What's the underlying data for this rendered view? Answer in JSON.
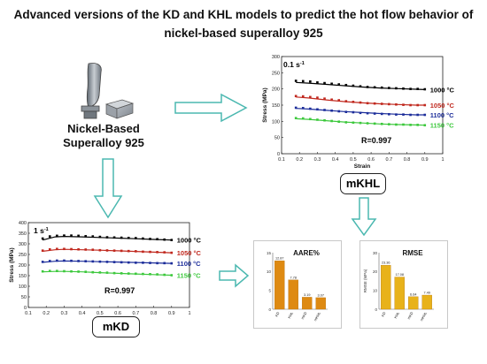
{
  "title": "Advanced versions of the KD and KHL models to predict the hot flow behavior of nickel-based superalloy 925",
  "material": {
    "line1": "Nickel-Based",
    "line2": "Superalloy 925"
  },
  "models": {
    "mkhl": "mKHL",
    "mkd": "mKD"
  },
  "colors": {
    "arrow": "#4bb8b0",
    "c1000": "#000000",
    "c1050": "#c0281e",
    "c1100": "#1c2d9a",
    "c1150": "#3cc83c",
    "aare_bar": "#de8a12",
    "rmse_bar": "#e8b21a"
  },
  "chart_data": [
    {
      "type": "line",
      "id": "mkhl",
      "rate_label": "0.1 s",
      "rate_exp": "-1",
      "xlabel": "Strain",
      "ylabel": "Stress (MPa)",
      "xlim": [
        0.1,
        1.0
      ],
      "ylim": [
        0,
        300
      ],
      "xticks": [
        "0.1",
        "0.2",
        "0.3",
        "0.4",
        "0.5",
        "0.6",
        "0.7",
        "0.8",
        "0.9",
        "1"
      ],
      "yticks": [
        "0",
        "50",
        "100",
        "150",
        "200",
        "250",
        "300"
      ],
      "r_label": "R=0.997",
      "grid": false,
      "series": [
        {
          "name": "1000 °C",
          "color_key": "c1000",
          "fit": [
            [
              0.18,
              220
            ],
            [
              0.25,
              218
            ],
            [
              0.35,
              214
            ],
            [
              0.45,
              210
            ],
            [
              0.55,
              206
            ],
            [
              0.65,
              203
            ],
            [
              0.75,
              201
            ],
            [
              0.85,
              199
            ],
            [
              0.9,
              198
            ]
          ],
          "points": [
            [
              0.18,
              225
            ],
            [
              0.22,
              224
            ],
            [
              0.26,
              223
            ],
            [
              0.3,
              220
            ],
            [
              0.34,
              218
            ],
            [
              0.38,
              216
            ],
            [
              0.42,
              214
            ],
            [
              0.46,
              212
            ],
            [
              0.5,
              210
            ],
            [
              0.54,
              208
            ],
            [
              0.58,
              206
            ],
            [
              0.62,
              205
            ],
            [
              0.66,
              204
            ],
            [
              0.7,
              203
            ],
            [
              0.74,
              202
            ],
            [
              0.78,
              201
            ],
            [
              0.82,
              200
            ],
            [
              0.86,
              200
            ],
            [
              0.9,
              199
            ]
          ]
        },
        {
          "name": "1050 °C",
          "color_key": "c1050",
          "fit": [
            [
              0.18,
              175
            ],
            [
              0.25,
              172
            ],
            [
              0.35,
              166
            ],
            [
              0.45,
              161
            ],
            [
              0.55,
              157
            ],
            [
              0.65,
              154
            ],
            [
              0.75,
              152
            ],
            [
              0.85,
              150
            ],
            [
              0.9,
              150
            ]
          ],
          "points": [
            [
              0.18,
              178
            ],
            [
              0.22,
              177
            ],
            [
              0.26,
              175
            ],
            [
              0.3,
              173
            ],
            [
              0.34,
              170
            ],
            [
              0.38,
              167
            ],
            [
              0.42,
              165
            ],
            [
              0.46,
              162
            ],
            [
              0.5,
              160
            ],
            [
              0.54,
              158
            ],
            [
              0.58,
              156
            ],
            [
              0.62,
              155
            ],
            [
              0.66,
              154
            ],
            [
              0.7,
              153
            ],
            [
              0.74,
              152
            ],
            [
              0.78,
              151
            ],
            [
              0.82,
              150
            ],
            [
              0.86,
              150
            ],
            [
              0.9,
              150
            ]
          ]
        },
        {
          "name": "1100 °C",
          "color_key": "c1100",
          "fit": [
            [
              0.18,
              140
            ],
            [
              0.25,
              138
            ],
            [
              0.35,
              134
            ],
            [
              0.45,
              130
            ],
            [
              0.55,
              127
            ],
            [
              0.65,
              124
            ],
            [
              0.75,
              122
            ],
            [
              0.85,
              120
            ],
            [
              0.9,
              120
            ]
          ],
          "points": [
            [
              0.18,
              142
            ],
            [
              0.22,
              141
            ],
            [
              0.26,
              139
            ],
            [
              0.3,
              137
            ],
            [
              0.34,
              135
            ],
            [
              0.38,
              133
            ],
            [
              0.42,
              131
            ],
            [
              0.46,
              129
            ],
            [
              0.5,
              128
            ],
            [
              0.54,
              126
            ],
            [
              0.58,
              125
            ],
            [
              0.62,
              124
            ],
            [
              0.66,
              123
            ],
            [
              0.7,
              122
            ],
            [
              0.74,
              121
            ],
            [
              0.78,
              121
            ],
            [
              0.82,
              120
            ],
            [
              0.86,
              120
            ],
            [
              0.9,
              120
            ]
          ]
        },
        {
          "name": "1150 °C",
          "color_key": "c1150",
          "fit": [
            [
              0.18,
              108
            ],
            [
              0.25,
              106
            ],
            [
              0.35,
              102
            ],
            [
              0.45,
              98
            ],
            [
              0.55,
              95
            ],
            [
              0.65,
              92
            ],
            [
              0.75,
              90
            ],
            [
              0.85,
              89
            ],
            [
              0.9,
              88
            ]
          ],
          "points": [
            [
              0.18,
              110
            ],
            [
              0.22,
              109
            ],
            [
              0.26,
              107
            ],
            [
              0.3,
              105
            ],
            [
              0.34,
              103
            ],
            [
              0.38,
              101
            ],
            [
              0.42,
              99
            ],
            [
              0.46,
              97
            ],
            [
              0.5,
              96
            ],
            [
              0.54,
              95
            ],
            [
              0.58,
              94
            ],
            [
              0.62,
              93
            ],
            [
              0.66,
              92
            ],
            [
              0.7,
              91
            ],
            [
              0.74,
              90
            ],
            [
              0.78,
              90
            ],
            [
              0.82,
              89
            ],
            [
              0.86,
              89
            ],
            [
              0.9,
              88
            ]
          ]
        }
      ]
    },
    {
      "type": "line",
      "id": "mkd",
      "rate_label": "1 s",
      "rate_exp": "-1",
      "xlabel": "Strain",
      "ylabel": "Stress (MPa)",
      "xlim": [
        0.1,
        1.0
      ],
      "ylim": [
        0,
        400
      ],
      "xticks": [
        "0.1",
        "0.2",
        "0.3",
        "0.4",
        "0.5",
        "0.6",
        "0.7",
        "0.8",
        "0.9",
        "1"
      ],
      "yticks": [
        "0",
        "50",
        "100",
        "150",
        "200",
        "250",
        "300",
        "350",
        "400"
      ],
      "r_label": "R=0.997",
      "grid": false,
      "series": [
        {
          "name": "1000 °C",
          "color_key": "c1000",
          "fit": [
            [
              0.18,
              318
            ],
            [
              0.25,
              333
            ],
            [
              0.3,
              335
            ],
            [
              0.4,
              333
            ],
            [
              0.5,
              330
            ],
            [
              0.6,
              327
            ],
            [
              0.7,
              324
            ],
            [
              0.8,
              321
            ],
            [
              0.9,
              318
            ]
          ],
          "points": [
            [
              0.18,
              325
            ],
            [
              0.22,
              335
            ],
            [
              0.26,
              338
            ],
            [
              0.3,
              339
            ],
            [
              0.34,
              339
            ],
            [
              0.38,
              338
            ],
            [
              0.42,
              336
            ],
            [
              0.46,
              335
            ],
            [
              0.5,
              333
            ],
            [
              0.54,
              331
            ],
            [
              0.58,
              330
            ],
            [
              0.62,
              329
            ],
            [
              0.66,
              328
            ],
            [
              0.7,
              327
            ],
            [
              0.74,
              325
            ],
            [
              0.78,
              323
            ],
            [
              0.82,
              322
            ],
            [
              0.86,
              320
            ],
            [
              0.9,
              318
            ]
          ]
        },
        {
          "name": "1050 °C",
          "color_key": "c1050",
          "fit": [
            [
              0.18,
              265
            ],
            [
              0.25,
              272
            ],
            [
              0.3,
              274
            ],
            [
              0.4,
              272
            ],
            [
              0.5,
              270
            ],
            [
              0.6,
              267
            ],
            [
              0.7,
              264
            ],
            [
              0.8,
              261
            ],
            [
              0.9,
              258
            ]
          ],
          "points": [
            [
              0.18,
              268
            ],
            [
              0.22,
              274
            ],
            [
              0.26,
              276
            ],
            [
              0.3,
              276
            ],
            [
              0.34,
              275
            ],
            [
              0.38,
              274
            ],
            [
              0.42,
              273
            ],
            [
              0.46,
              272
            ],
            [
              0.5,
              270
            ],
            [
              0.54,
              269
            ],
            [
              0.58,
              268
            ],
            [
              0.62,
              267
            ],
            [
              0.66,
              266
            ],
            [
              0.7,
              265
            ],
            [
              0.74,
              263
            ],
            [
              0.78,
              262
            ],
            [
              0.82,
              261
            ],
            [
              0.86,
              260
            ],
            [
              0.9,
              258
            ]
          ]
        },
        {
          "name": "1100 °C",
          "color_key": "c1100",
          "fit": [
            [
              0.18,
              213
            ],
            [
              0.25,
              218
            ],
            [
              0.3,
              219
            ],
            [
              0.4,
              218
            ],
            [
              0.5,
              216
            ],
            [
              0.6,
              214
            ],
            [
              0.7,
              212
            ],
            [
              0.8,
              210
            ],
            [
              0.9,
              208
            ]
          ],
          "points": [
            [
              0.18,
              215
            ],
            [
              0.22,
              219
            ],
            [
              0.26,
              221
            ],
            [
              0.3,
              221
            ],
            [
              0.34,
              220
            ],
            [
              0.38,
              219
            ],
            [
              0.42,
              218
            ],
            [
              0.46,
              217
            ],
            [
              0.5,
              216
            ],
            [
              0.54,
              215
            ],
            [
              0.58,
              214
            ],
            [
              0.62,
              213
            ],
            [
              0.66,
              212
            ],
            [
              0.7,
              211
            ],
            [
              0.74,
              211
            ],
            [
              0.78,
              210
            ],
            [
              0.82,
              209
            ],
            [
              0.86,
              209
            ],
            [
              0.9,
              208
            ]
          ]
        },
        {
          "name": "1150 °C",
          "color_key": "c1150",
          "fit": [
            [
              0.18,
              168
            ],
            [
              0.25,
              170
            ],
            [
              0.3,
              170
            ],
            [
              0.4,
              168
            ],
            [
              0.5,
              164
            ],
            [
              0.6,
              161
            ],
            [
              0.7,
              158
            ],
            [
              0.8,
              155
            ],
            [
              0.9,
              152
            ]
          ],
          "points": [
            [
              0.18,
              170
            ],
            [
              0.22,
              172
            ],
            [
              0.26,
              172
            ],
            [
              0.3,
              171
            ],
            [
              0.34,
              170
            ],
            [
              0.38,
              169
            ],
            [
              0.42,
              168
            ],
            [
              0.46,
              166
            ],
            [
              0.5,
              165
            ],
            [
              0.54,
              164
            ],
            [
              0.58,
              162
            ],
            [
              0.62,
              161
            ],
            [
              0.66,
              160
            ],
            [
              0.7,
              159
            ],
            [
              0.74,
              158
            ],
            [
              0.78,
              157
            ],
            [
              0.82,
              156
            ],
            [
              0.86,
              154
            ],
            [
              0.9,
              152
            ]
          ]
        }
      ]
    },
    {
      "type": "bar",
      "id": "aare",
      "title": "AARE%",
      "categories": [
        "KD",
        "KHL",
        "mKD",
        "mKHL"
      ],
      "values": [
        12.87,
        7.78,
        3.19,
        3.07
      ],
      "value_labels": [
        "12.87",
        "7.78",
        "3.19",
        "3.07"
      ],
      "ylim": [
        0,
        15
      ],
      "yticks": [
        "0",
        "5",
        "10",
        "15"
      ],
      "color_key": "aare_bar"
    },
    {
      "type": "bar",
      "id": "rmse",
      "title": "RMSE",
      "categories": [
        "KD",
        "KHL",
        "mKD",
        "mKHL"
      ],
      "values": [
        23.36,
        17.08,
        6.64,
        7.49
      ],
      "value_labels": [
        "23.36",
        "17.08",
        "6.64",
        "7.49"
      ],
      "ylim": [
        0,
        30
      ],
      "yticks": [
        "0",
        "10",
        "20",
        "30"
      ],
      "ylabel": "RMSE (MPa)",
      "color_key": "rmse_bar"
    }
  ]
}
